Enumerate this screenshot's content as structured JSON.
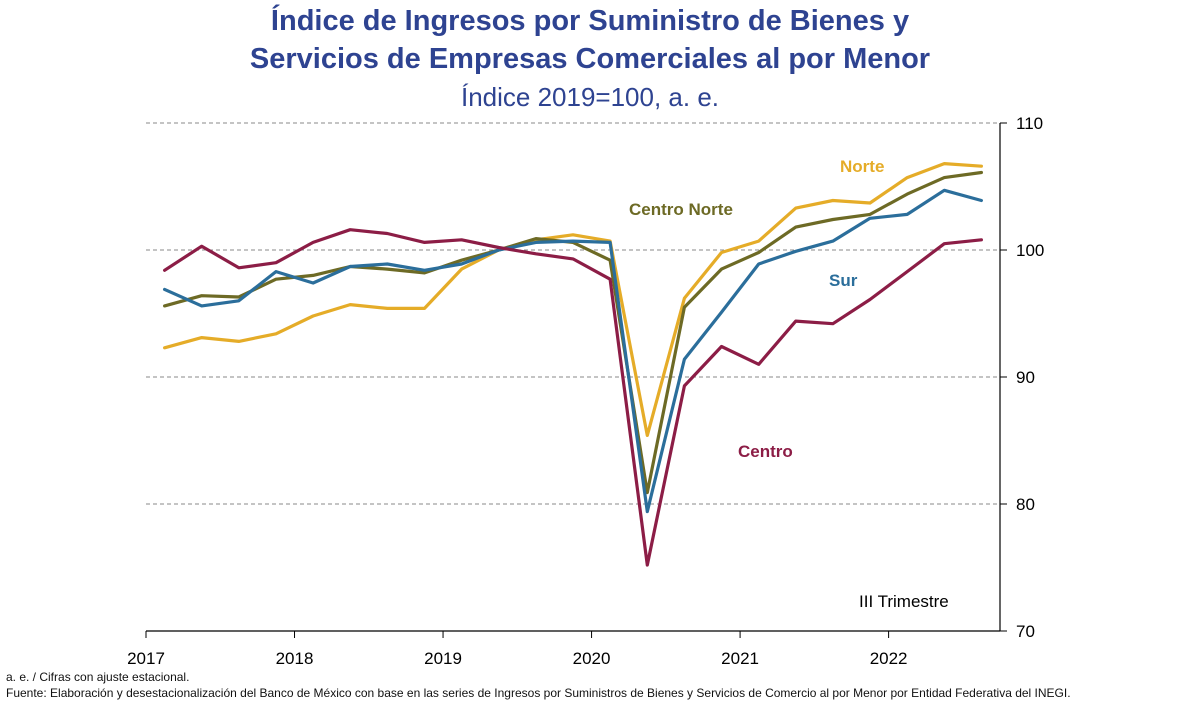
{
  "chart_data": {
    "type": "line",
    "title": "Índice de Ingresos por Suministro de Bienes y",
    "title_line2": "Servicios de Empresas Comerciales al por Menor",
    "subtitle": "Índice 2019=100, a. e.",
    "annotation": "III Trimestre",
    "ylim": [
      70,
      110
    ],
    "yticks": [
      70,
      80,
      90,
      100,
      110
    ],
    "xlim": [
      2017,
      2022.75
    ],
    "xticks": [
      "2017",
      "2018",
      "2019",
      "2020",
      "2021",
      "2022"
    ],
    "x": [
      2017.125,
      2017.375,
      2017.625,
      2017.875,
      2018.125,
      2018.375,
      2018.625,
      2018.875,
      2019.125,
      2019.375,
      2019.625,
      2019.875,
      2020.125,
      2020.375,
      2020.625,
      2020.875,
      2021.125,
      2021.375,
      2021.625,
      2021.875,
      2022.125,
      2022.375,
      2022.625
    ],
    "series": [
      {
        "name": "Norte",
        "color": "#e5ac28",
        "values": [
          92.3,
          93.1,
          92.8,
          93.4,
          94.8,
          95.7,
          95.4,
          95.4,
          98.5,
          100.0,
          100.8,
          101.2,
          100.7,
          85.4,
          96.2,
          99.8,
          100.7,
          103.3,
          103.9,
          103.7,
          105.7,
          106.8,
          106.6
        ]
      },
      {
        "name": "Centro Norte",
        "color": "#6d6a25",
        "values": [
          95.6,
          96.4,
          96.3,
          97.7,
          98.0,
          98.7,
          98.5,
          98.2,
          99.2,
          100.0,
          100.9,
          100.6,
          99.2,
          80.9,
          95.5,
          98.5,
          99.8,
          101.8,
          102.4,
          102.8,
          104.4,
          105.7,
          106.1
        ]
      },
      {
        "name": "Sur",
        "color": "#2b6e9b",
        "values": [
          96.9,
          95.6,
          96.0,
          98.3,
          97.4,
          98.7,
          98.9,
          98.4,
          98.9,
          100.0,
          100.6,
          100.7,
          100.6,
          79.4,
          91.4,
          95.1,
          98.9,
          99.9,
          100.7,
          102.5,
          102.8,
          104.7,
          103.9
        ]
      },
      {
        "name": "Centro",
        "color": "#8c1d46",
        "values": [
          98.4,
          100.3,
          98.6,
          99.0,
          100.6,
          101.6,
          101.3,
          100.6,
          100.8,
          100.2,
          99.7,
          99.3,
          97.7,
          75.2,
          89.3,
          92.4,
          91.0,
          94.4,
          94.2,
          96.1,
          98.3,
          100.5,
          100.8
        ]
      }
    ]
  },
  "footnotes": {
    "note": "a. e. / Cifras con ajuste estacional.",
    "source": "Fuente: Elaboración y desestacionalización del Banco de México con base en las series de Ingresos por Suministros de Bienes y Servicios de Comercio al por Menor por Entidad Federativa del INEGI."
  }
}
